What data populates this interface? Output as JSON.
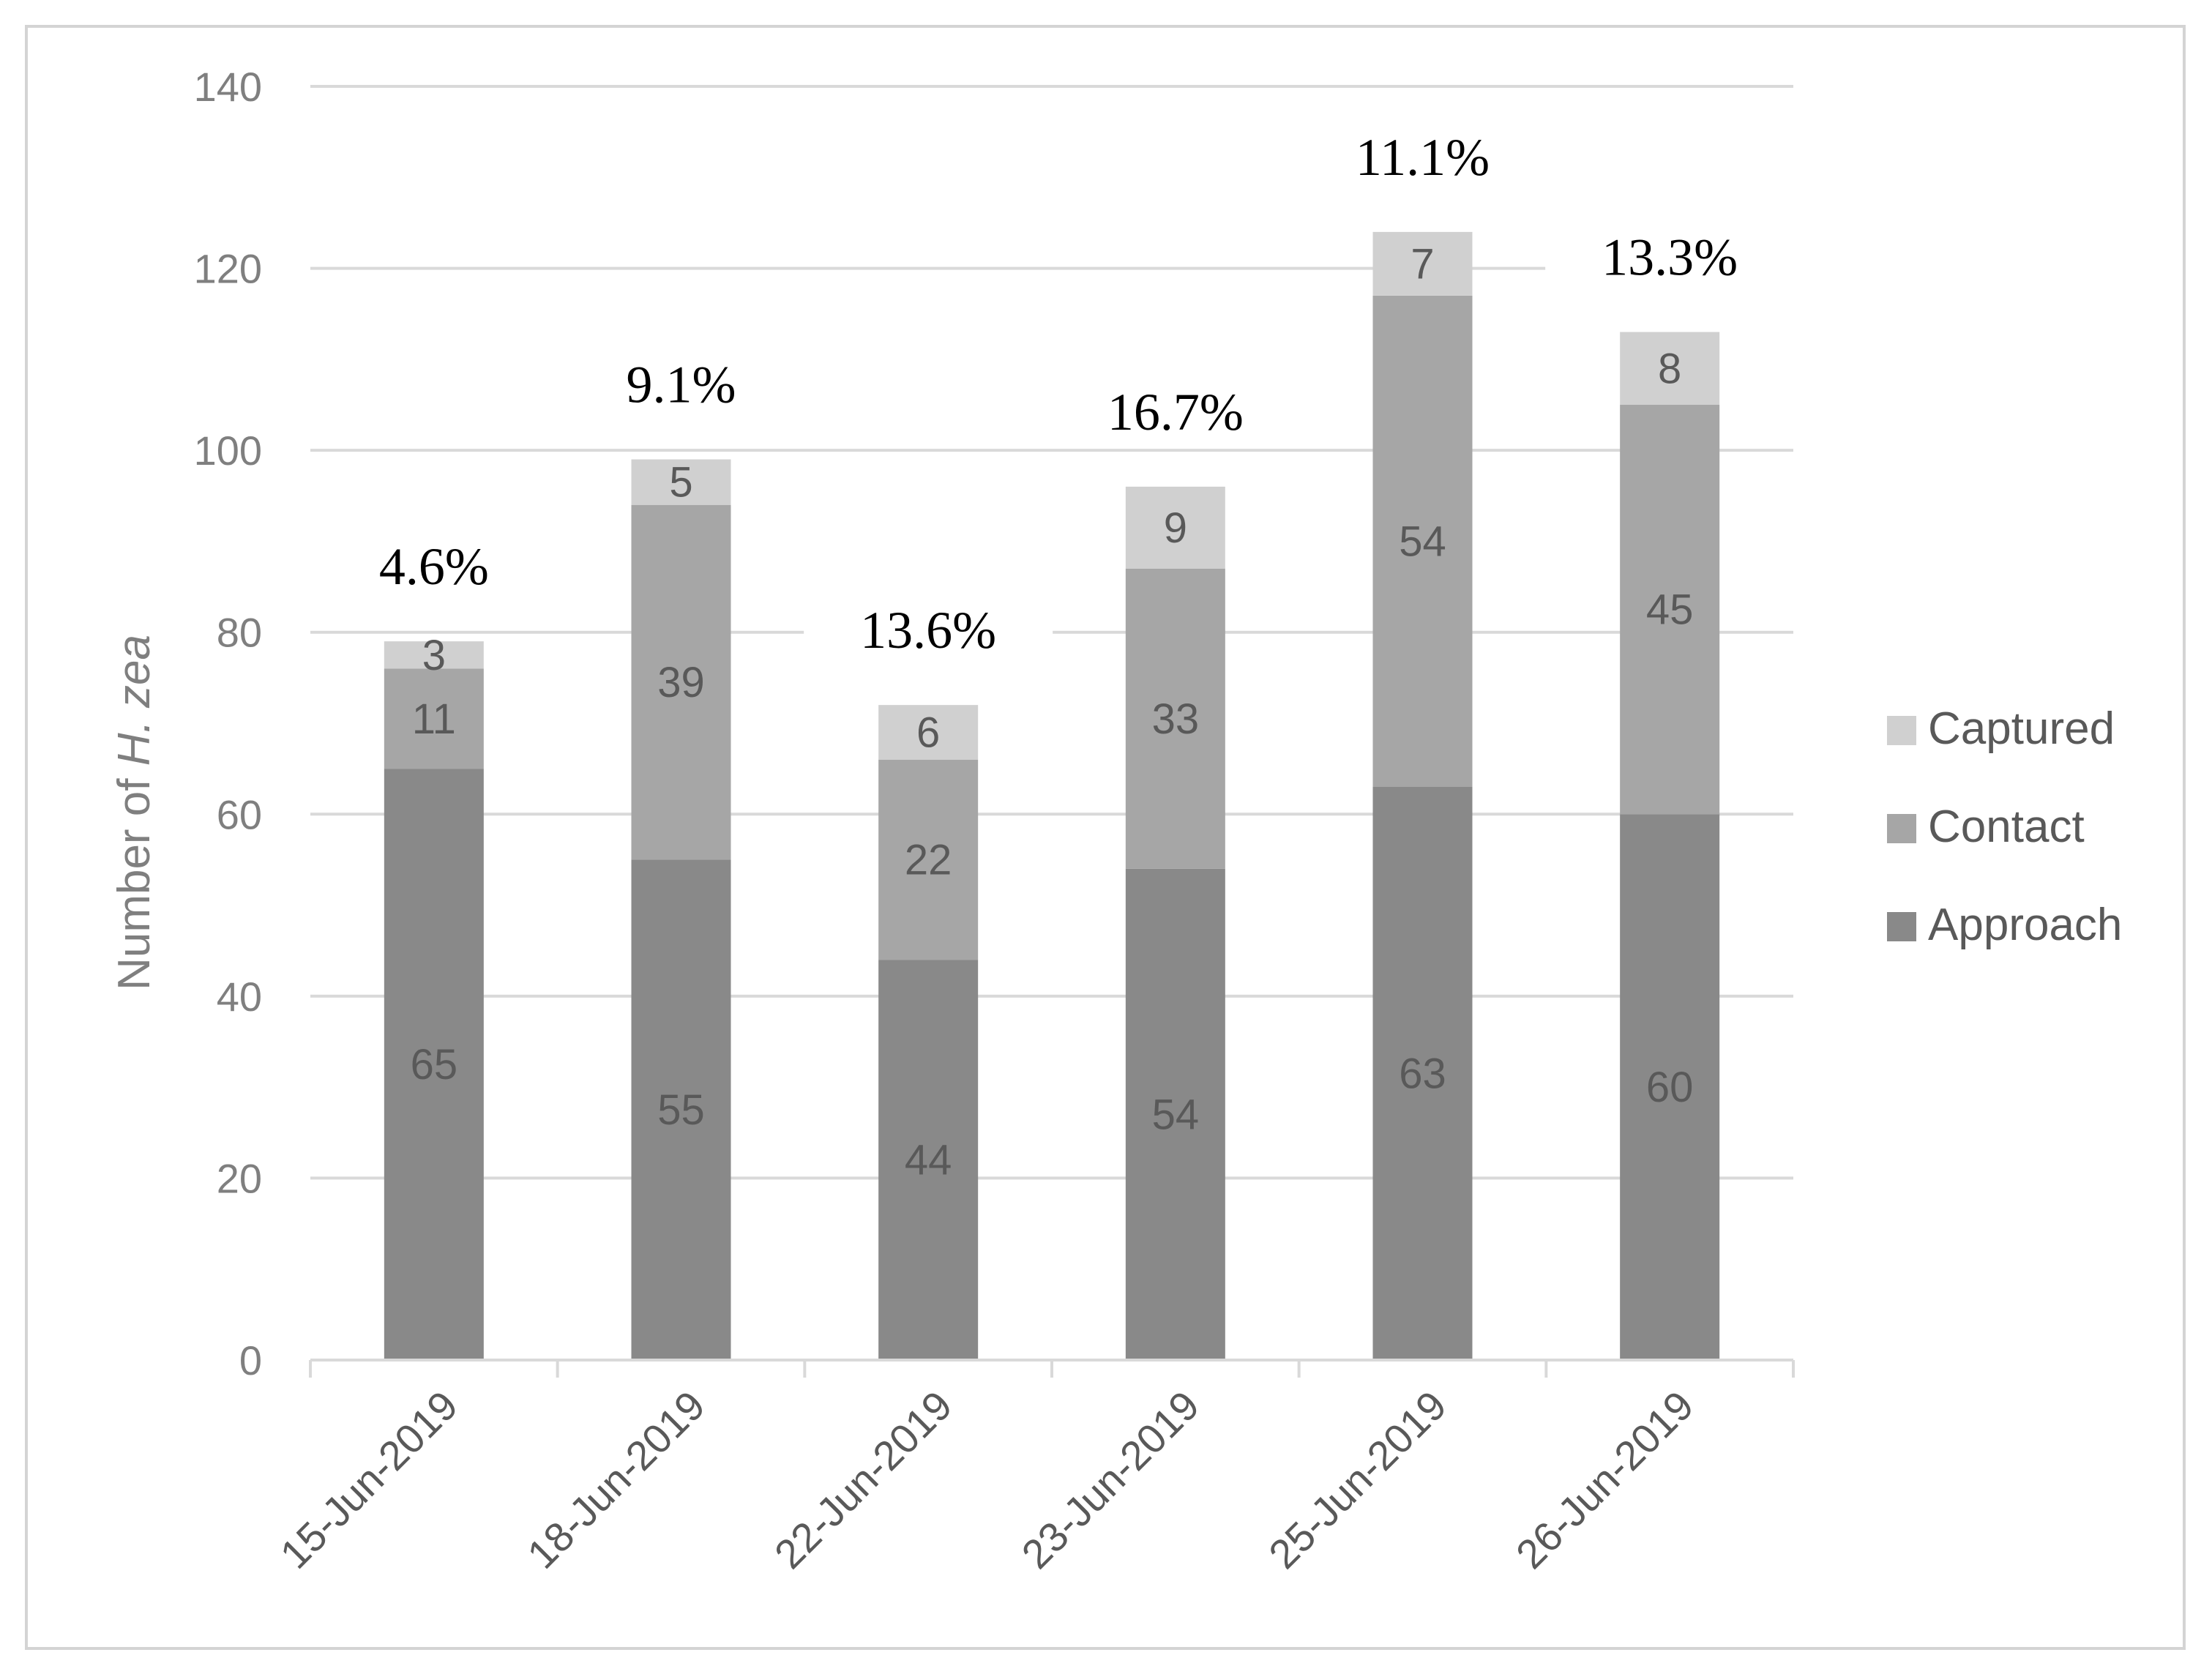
{
  "chart_data": {
    "type": "bar",
    "stacked": true,
    "categories": [
      "15-Jun-2019",
      "18-Jun-2019",
      "22-Jun-2019",
      "23-Jun-2019",
      "25-Jun-2019",
      "26-Jun-2019"
    ],
    "series": [
      {
        "name": "Approach",
        "values": [
          65,
          55,
          44,
          54,
          63,
          60
        ],
        "color": "#898989"
      },
      {
        "name": "Contact",
        "values": [
          11,
          39,
          22,
          33,
          54,
          45
        ],
        "color": "#a6a6a6"
      },
      {
        "name": "Captured",
        "values": [
          3,
          5,
          6,
          9,
          7,
          8
        ],
        "color": "#d0d0d0"
      }
    ],
    "annotations": [
      "4.6%",
      "9.1%",
      "13.6%",
      "16.7%",
      "11.1%",
      "13.3%"
    ],
    "ylabel_prefix": "Number of ",
    "ylabel_italic": "H. zea",
    "ylim": [
      0,
      140
    ],
    "yticks": [
      0,
      20,
      40,
      60,
      80,
      100,
      120,
      140
    ],
    "grid": true,
    "legend_position": "right",
    "legend_order": [
      "Captured",
      "Contact",
      "Approach"
    ]
  }
}
